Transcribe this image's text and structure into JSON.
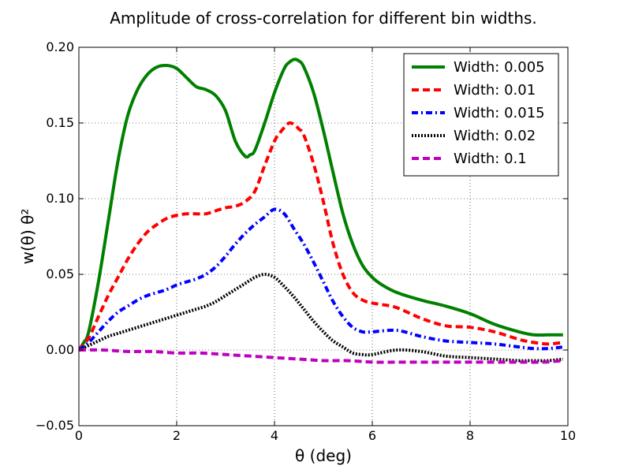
{
  "chart_data": {
    "type": "line",
    "title": "Amplitude of cross-correlation for different bin widths.",
    "xlabel": "θ (deg)",
    "ylabel": "w(θ) θ²",
    "xlim": [
      0,
      10
    ],
    "ylim": [
      -0.05,
      0.2
    ],
    "xticks": [
      0,
      2,
      4,
      6,
      8,
      10
    ],
    "xtick_labels": [
      "0",
      "2",
      "4",
      "6",
      "8",
      "10"
    ],
    "yticks": [
      -0.05,
      0.0,
      0.05,
      0.1,
      0.15,
      0.2
    ],
    "ytick_labels": [
      "−0.05",
      "0.00",
      "0.05",
      "0.10",
      "0.15",
      "0.20"
    ],
    "grid": true,
    "legend_position": "top-right",
    "series": [
      {
        "name": "Width: 0.005",
        "color": "#008000",
        "style": "solid",
        "x": [
          0.0,
          0.1,
          0.2,
          0.4,
          0.6,
          0.8,
          1.0,
          1.2,
          1.4,
          1.6,
          1.8,
          2.0,
          2.2,
          2.4,
          2.6,
          2.8,
          3.0,
          3.2,
          3.4,
          3.5,
          3.6,
          3.8,
          4.0,
          4.2,
          4.3,
          4.4,
          4.5,
          4.6,
          4.8,
          5.0,
          5.2,
          5.4,
          5.6,
          5.8,
          6.0,
          6.2,
          6.5,
          7.0,
          7.5,
          8.0,
          8.5,
          9.0,
          9.3,
          9.6,
          9.9
        ],
        "y": [
          0.0,
          0.005,
          0.012,
          0.045,
          0.085,
          0.125,
          0.155,
          0.172,
          0.182,
          0.187,
          0.188,
          0.186,
          0.18,
          0.174,
          0.172,
          0.168,
          0.158,
          0.138,
          0.128,
          0.129,
          0.132,
          0.15,
          0.17,
          0.186,
          0.19,
          0.192,
          0.191,
          0.187,
          0.17,
          0.145,
          0.117,
          0.09,
          0.07,
          0.056,
          0.048,
          0.043,
          0.038,
          0.033,
          0.029,
          0.024,
          0.017,
          0.012,
          0.01,
          0.01,
          0.01
        ]
      },
      {
        "name": "Width: 0.01",
        "color": "#ff0000",
        "style": "dashed",
        "x": [
          0.0,
          0.2,
          0.4,
          0.6,
          0.8,
          1.0,
          1.2,
          1.4,
          1.6,
          1.8,
          2.0,
          2.2,
          2.4,
          2.6,
          2.8,
          3.0,
          3.2,
          3.4,
          3.6,
          3.8,
          4.0,
          4.1,
          4.2,
          4.3,
          4.4,
          4.5,
          4.6,
          4.8,
          5.0,
          5.2,
          5.4,
          5.6,
          5.8,
          6.0,
          6.2,
          6.5,
          7.0,
          7.5,
          8.0,
          8.5,
          9.0,
          9.3,
          9.6,
          9.9
        ],
        "y": [
          0.0,
          0.008,
          0.022,
          0.036,
          0.048,
          0.06,
          0.07,
          0.078,
          0.083,
          0.087,
          0.089,
          0.09,
          0.09,
          0.09,
          0.092,
          0.094,
          0.095,
          0.098,
          0.105,
          0.122,
          0.138,
          0.143,
          0.147,
          0.15,
          0.149,
          0.146,
          0.142,
          0.123,
          0.098,
          0.07,
          0.05,
          0.038,
          0.033,
          0.031,
          0.03,
          0.028,
          0.021,
          0.016,
          0.015,
          0.012,
          0.007,
          0.005,
          0.004,
          0.005
        ]
      },
      {
        "name": "Width: 0.015",
        "color": "#0000ff",
        "style": "dashdot",
        "x": [
          0.0,
          0.2,
          0.4,
          0.6,
          0.8,
          1.0,
          1.2,
          1.4,
          1.6,
          1.8,
          2.0,
          2.2,
          2.4,
          2.6,
          2.8,
          3.0,
          3.2,
          3.4,
          3.6,
          3.8,
          4.0,
          4.2,
          4.4,
          4.6,
          4.8,
          5.0,
          5.2,
          5.4,
          5.6,
          5.8,
          6.0,
          6.5,
          7.0,
          7.5,
          8.0,
          8.5,
          9.0,
          9.3,
          9.6,
          9.9
        ],
        "y": [
          0.0,
          0.005,
          0.012,
          0.019,
          0.025,
          0.029,
          0.033,
          0.036,
          0.038,
          0.04,
          0.043,
          0.045,
          0.047,
          0.05,
          0.055,
          0.062,
          0.07,
          0.077,
          0.083,
          0.088,
          0.093,
          0.09,
          0.08,
          0.07,
          0.058,
          0.045,
          0.032,
          0.022,
          0.015,
          0.012,
          0.012,
          0.013,
          0.009,
          0.006,
          0.005,
          0.004,
          0.002,
          0.001,
          0.001,
          0.002
        ]
      },
      {
        "name": "Width: 0.02",
        "color": "#000000",
        "style": "dotted",
        "x": [
          0.0,
          0.2,
          0.4,
          0.6,
          0.8,
          1.0,
          1.2,
          1.4,
          1.6,
          1.8,
          2.0,
          2.2,
          2.4,
          2.6,
          2.8,
          3.0,
          3.2,
          3.4,
          3.6,
          3.8,
          4.0,
          4.2,
          4.4,
          4.6,
          4.8,
          5.0,
          5.2,
          5.4,
          5.6,
          5.8,
          6.0,
          6.5,
          7.0,
          7.5,
          8.0,
          8.5,
          9.0,
          9.3,
          9.6,
          9.9
        ],
        "y": [
          0.0,
          0.003,
          0.006,
          0.009,
          0.011,
          0.013,
          0.015,
          0.017,
          0.019,
          0.021,
          0.023,
          0.025,
          0.027,
          0.029,
          0.032,
          0.036,
          0.04,
          0.044,
          0.048,
          0.05,
          0.048,
          0.042,
          0.035,
          0.027,
          0.019,
          0.012,
          0.006,
          0.002,
          -0.002,
          -0.003,
          -0.003,
          0.0,
          -0.001,
          -0.004,
          -0.005,
          -0.006,
          -0.007,
          -0.007,
          -0.007,
          -0.006
        ]
      },
      {
        "name": "Width: 0.1",
        "color": "#bf00bf",
        "style": "longdash",
        "x": [
          0.0,
          0.5,
          1.0,
          1.5,
          2.0,
          2.5,
          3.0,
          3.5,
          4.0,
          4.5,
          5.0,
          5.5,
          6.0,
          6.5,
          7.0,
          7.5,
          8.0,
          8.5,
          9.0,
          9.5,
          9.9
        ],
        "y": [
          0.0,
          0.0,
          -0.001,
          -0.001,
          -0.002,
          -0.002,
          -0.003,
          -0.004,
          -0.005,
          -0.006,
          -0.007,
          -0.007,
          -0.008,
          -0.008,
          -0.008,
          -0.008,
          -0.008,
          -0.008,
          -0.008,
          -0.008,
          -0.007
        ]
      }
    ]
  }
}
